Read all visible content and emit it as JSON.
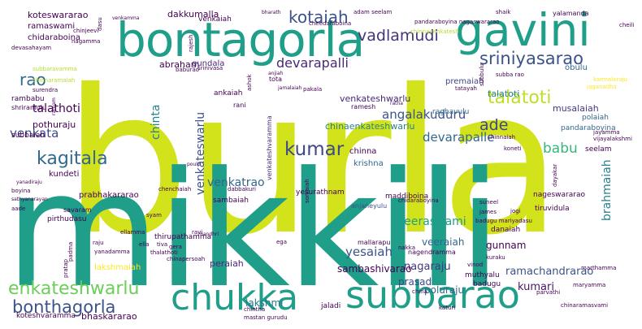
{
  "word_cloud": {
    "words": [
      {
        "text": "burla",
        "color": "#d2e21b"
      },
      {
        "text": "mikkili",
        "color": "#1f9e89"
      },
      {
        "text": "bontagorla",
        "color": "#1f9e89"
      },
      {
        "text": "gavini",
        "color": "#1f9e89"
      },
      {
        "text": "subbarao",
        "color": "#1f9e89"
      },
      {
        "text": "chukka",
        "color": "#1f9e89"
      },
      {
        "text": "enkateshwarlu",
        "color": "#6ccd5a"
      },
      {
        "text": "bonthagorla",
        "color": "#3b528b"
      },
      {
        "text": "kumar",
        "color": "#3e4989"
      },
      {
        "text": "sriniyasarao",
        "color": "#3b528b"
      },
      {
        "text": "kotaiah",
        "color": "#3b528b"
      },
      {
        "text": "vadlamudi",
        "color": "#46327e"
      },
      {
        "text": "talatoti",
        "color": "#bddf26"
      },
      {
        "text": "devarapalli",
        "color": "#482878"
      },
      {
        "text": "kagitala",
        "color": "#31688e"
      },
      {
        "text": "rao",
        "color": "#31688e"
      },
      {
        "text": "talathoti",
        "color": "#440154"
      },
      {
        "text": "babu",
        "color": "#35b779"
      },
      {
        "text": "ade",
        "color": "#3e4989"
      },
      {
        "text": "angalakuduru",
        "color": "#3b528b"
      },
      {
        "text": "devarapalle",
        "color": "#31688e"
      },
      {
        "text": "chinta",
        "color": "#26828e"
      },
      {
        "text": "venkata",
        "color": "#3e4989"
      },
      {
        "text": "brahmaiah",
        "color": "#26828e"
      },
      {
        "text": "yesaiah",
        "color": "#3b528b"
      },
      {
        "text": "venkateswarlu",
        "color": "#3b528b"
      },
      {
        "text": "venkatrao",
        "color": "#31688e"
      },
      {
        "text": "veeraswami",
        "color": "#1f9e89"
      },
      {
        "text": "gunnam",
        "color": "#440154"
      },
      {
        "text": "nagaraju",
        "color": "#443983"
      },
      {
        "text": "prasad",
        "color": "#3e4989"
      },
      {
        "text": "kumari",
        "color": "#471365"
      },
      {
        "text": "ramachandrarao",
        "color": "#3b528b"
      },
      {
        "text": "poluraju",
        "color": "#31688e"
      },
      {
        "text": "veeraiah",
        "color": "#31688e"
      },
      {
        "text": "sambashivarao",
        "color": "#440154"
      },
      {
        "text": "dakkumalla",
        "color": "#440154"
      },
      {
        "text": "koteswararao",
        "color": "#440154"
      },
      {
        "text": "pothuraju",
        "color": "#440154"
      },
      {
        "text": "abraham",
        "color": "#440154"
      },
      {
        "text": "gundala",
        "color": "#482878"
      },
      {
        "text": "venkateshwarlu",
        "color": "#482878"
      },
      {
        "text": "chinaenkateshwarlu",
        "color": "#26828e"
      },
      {
        "text": "musalaiah",
        "color": "#443983"
      },
      {
        "text": "talatoti",
        "color": "#26828e"
      },
      {
        "text": "bhaskararao",
        "color": "#440154"
      },
      {
        "text": "prabhakararao",
        "color": "#440154"
      },
      {
        "text": "lakshmi",
        "color": "#2a788e"
      },
      {
        "text": "chidaraboina",
        "color": "#440154"
      },
      {
        "text": "ramaswami",
        "color": "#440154"
      },
      {
        "text": "peraiah",
        "color": "#482878"
      },
      {
        "text": "chinna",
        "color": "#440154"
      },
      {
        "text": "krishna",
        "color": "#31688e"
      },
      {
        "text": "lakshmaiah",
        "color": "#fde725"
      },
      {
        "text": "kundeti",
        "color": "#440154"
      },
      {
        "text": "venkaiah",
        "color": "#440154"
      },
      {
        "text": "subbaiah",
        "color": "#440154"
      },
      {
        "text": "rambabu",
        "color": "#440154"
      },
      {
        "text": "ankaiah",
        "color": "#440154"
      },
      {
        "text": "premaiah",
        "color": "#3e4989"
      },
      {
        "text": "obulu",
        "color": "#31688e"
      },
      {
        "text": "raghavulu",
        "color": "#31688e"
      },
      {
        "text": "polaiah",
        "color": "#31688e"
      },
      {
        "text": "pandaraboyina",
        "color": "#31688e"
      },
      {
        "text": "seelam",
        "color": "#440154"
      },
      {
        "text": "yesurathnam",
        "color": "#440154"
      },
      {
        "text": "sambaiah",
        "color": "#440154"
      },
      {
        "text": "maddiboina",
        "color": "#440154"
      },
      {
        "text": "nageswararao",
        "color": "#440154"
      },
      {
        "text": "tiruvidula",
        "color": "#440154"
      },
      {
        "text": "anjaneyulu",
        "color": "#3b528b"
      },
      {
        "text": "thirupathamma",
        "color": "#440154"
      },
      {
        "text": "nagendramma",
        "color": "#440154"
      },
      {
        "text": "mallarapu",
        "color": "#440154"
      },
      {
        "text": "danaiah",
        "color": "#440154"
      },
      {
        "text": "muthyalu",
        "color": "#440154"
      },
      {
        "text": "badugu",
        "color": "#440154"
      },
      {
        "text": "pirthudasu",
        "color": "#440154"
      },
      {
        "text": "savaram",
        "color": "#440154"
      },
      {
        "text": "koteshvaramma",
        "color": "#440154"
      },
      {
        "text": "shriramulu",
        "color": "#440154"
      },
      {
        "text": "rani",
        "color": "#440154"
      },
      {
        "text": "ramesh",
        "color": "#440154"
      },
      {
        "text": "tota",
        "color": "#440154"
      },
      {
        "text": "pakala",
        "color": "#440154"
      },
      {
        "text": "baburao",
        "color": "#440154"
      },
      {
        "text": "surendra",
        "color": "#440154"
      },
      {
        "text": "subbaravamma",
        "color": "#b5de2b"
      },
      {
        "text": "chinnaramaiah",
        "color": "#b5de2b"
      },
      {
        "text": "devasahayam",
        "color": "#440154"
      },
      {
        "text": "chinjeevi",
        "color": "#440154"
      },
      {
        "text": "cheedaraboina",
        "color": "#440154"
      },
      {
        "text": "adam seelam",
        "color": "#440154"
      },
      {
        "text": "shaik",
        "color": "#440154"
      },
      {
        "text": "yalamanda",
        "color": "#440154"
      },
      {
        "text": "pandaraboyina nagaswararao",
        "color": "#440154"
      },
      {
        "text": "chinnavenkatesh",
        "color": "#b5de2b"
      },
      {
        "text": "srinivasa",
        "color": "#440154"
      },
      {
        "text": "rajesh",
        "color": "#440154"
      },
      {
        "text": "ashok",
        "color": "#440154"
      },
      {
        "text": "subbulu",
        "color": "#440154"
      },
      {
        "text": "karmalaraju",
        "color": "#fde725"
      },
      {
        "text": "jayamma",
        "color": "#440154"
      },
      {
        "text": "vijayalakshmi",
        "color": "#440154"
      },
      {
        "text": "chinnaiah",
        "color": "#440154"
      },
      {
        "text": "koneti",
        "color": "#440154"
      },
      {
        "text": "chenchaiah",
        "color": "#440154"
      },
      {
        "text": "dabbakuri",
        "color": "#440154"
      },
      {
        "text": "venkateshvaramma",
        "color": "#482878"
      },
      {
        "text": "somaiah",
        "color": "#440154"
      },
      {
        "text": "nakka",
        "color": "#440154"
      },
      {
        "text": "suneel",
        "color": "#440154"
      },
      {
        "text": "james",
        "color": "#440154"
      },
      {
        "text": "jogi",
        "color": "#440154"
      },
      {
        "text": "vinod",
        "color": "#440154"
      },
      {
        "text": "marthamma",
        "color": "#440154"
      },
      {
        "text": "kuraku",
        "color": "#440154"
      },
      {
        "text": "china",
        "color": "#440154"
      },
      {
        "text": "katuri",
        "color": "#440154"
      },
      {
        "text": "parvathi",
        "color": "#440154"
      },
      {
        "text": "jaladi",
        "color": "#440154"
      },
      {
        "text": "chintha",
        "color": "#440154"
      },
      {
        "text": "mastan gurudu",
        "color": "#440154"
      },
      {
        "text": "chinaramasvami",
        "color": "#440154"
      },
      {
        "text": "maryamma",
        "color": "#440154"
      },
      {
        "text": "thalathoti",
        "color": "#440154"
      },
      {
        "text": "chinapersoah",
        "color": "#440154"
      },
      {
        "text": "tiva",
        "color": "#440154"
      },
      {
        "text": "gera",
        "color": "#440154"
      },
      {
        "text": "raju",
        "color": "#440154"
      },
      {
        "text": "yanadamma",
        "color": "#440154"
      },
      {
        "text": "pratap",
        "color": "#440154"
      },
      {
        "text": "padma",
        "color": "#440154"
      },
      {
        "text": "aade",
        "color": "#440154"
      },
      {
        "text": "boyina",
        "color": "#440154"
      },
      {
        "text": "sathyanarayan",
        "color": "#440154"
      },
      {
        "text": "yanadiraju",
        "color": "#440154"
      },
      {
        "text": "dasu",
        "color": "#440154"
      },
      {
        "text": "dayakar",
        "color": "#440154"
      },
      {
        "text": "cheili",
        "color": "#440154"
      },
      {
        "text": "badugu mariyadasu",
        "color": "#440154"
      },
      {
        "text": "ravi",
        "color": "#440154"
      },
      {
        "text": "syam",
        "color": "#440154"
      },
      {
        "text": "chidaraboyina",
        "color": "#440154"
      },
      {
        "text": "jaganadha",
        "color": "#fde725"
      },
      {
        "text": "subba rao",
        "color": "#440154"
      },
      {
        "text": "tatayah",
        "color": "#440154"
      },
      {
        "text": "nagamma",
        "color": "#440154"
      },
      {
        "text": "anjiah",
        "color": "#440154"
      },
      {
        "text": "ratnam",
        "color": "#440154"
      },
      {
        "text": "venkamma",
        "color": "#440154"
      },
      {
        "text": "ega",
        "color": "#440154"
      },
      {
        "text": "ratna",
        "color": "#440154"
      },
      {
        "text": "jamalaiah",
        "color": "#440154"
      },
      {
        "text": "poulo",
        "color": "#440154"
      },
      {
        "text": "mandhri",
        "color": "#440154"
      },
      {
        "text": "ellamma",
        "color": "#440154"
      },
      {
        "text": "bharath",
        "color": "#440154"
      },
      {
        "text": "ella",
        "color": "#440154"
      }
    ]
  }
}
